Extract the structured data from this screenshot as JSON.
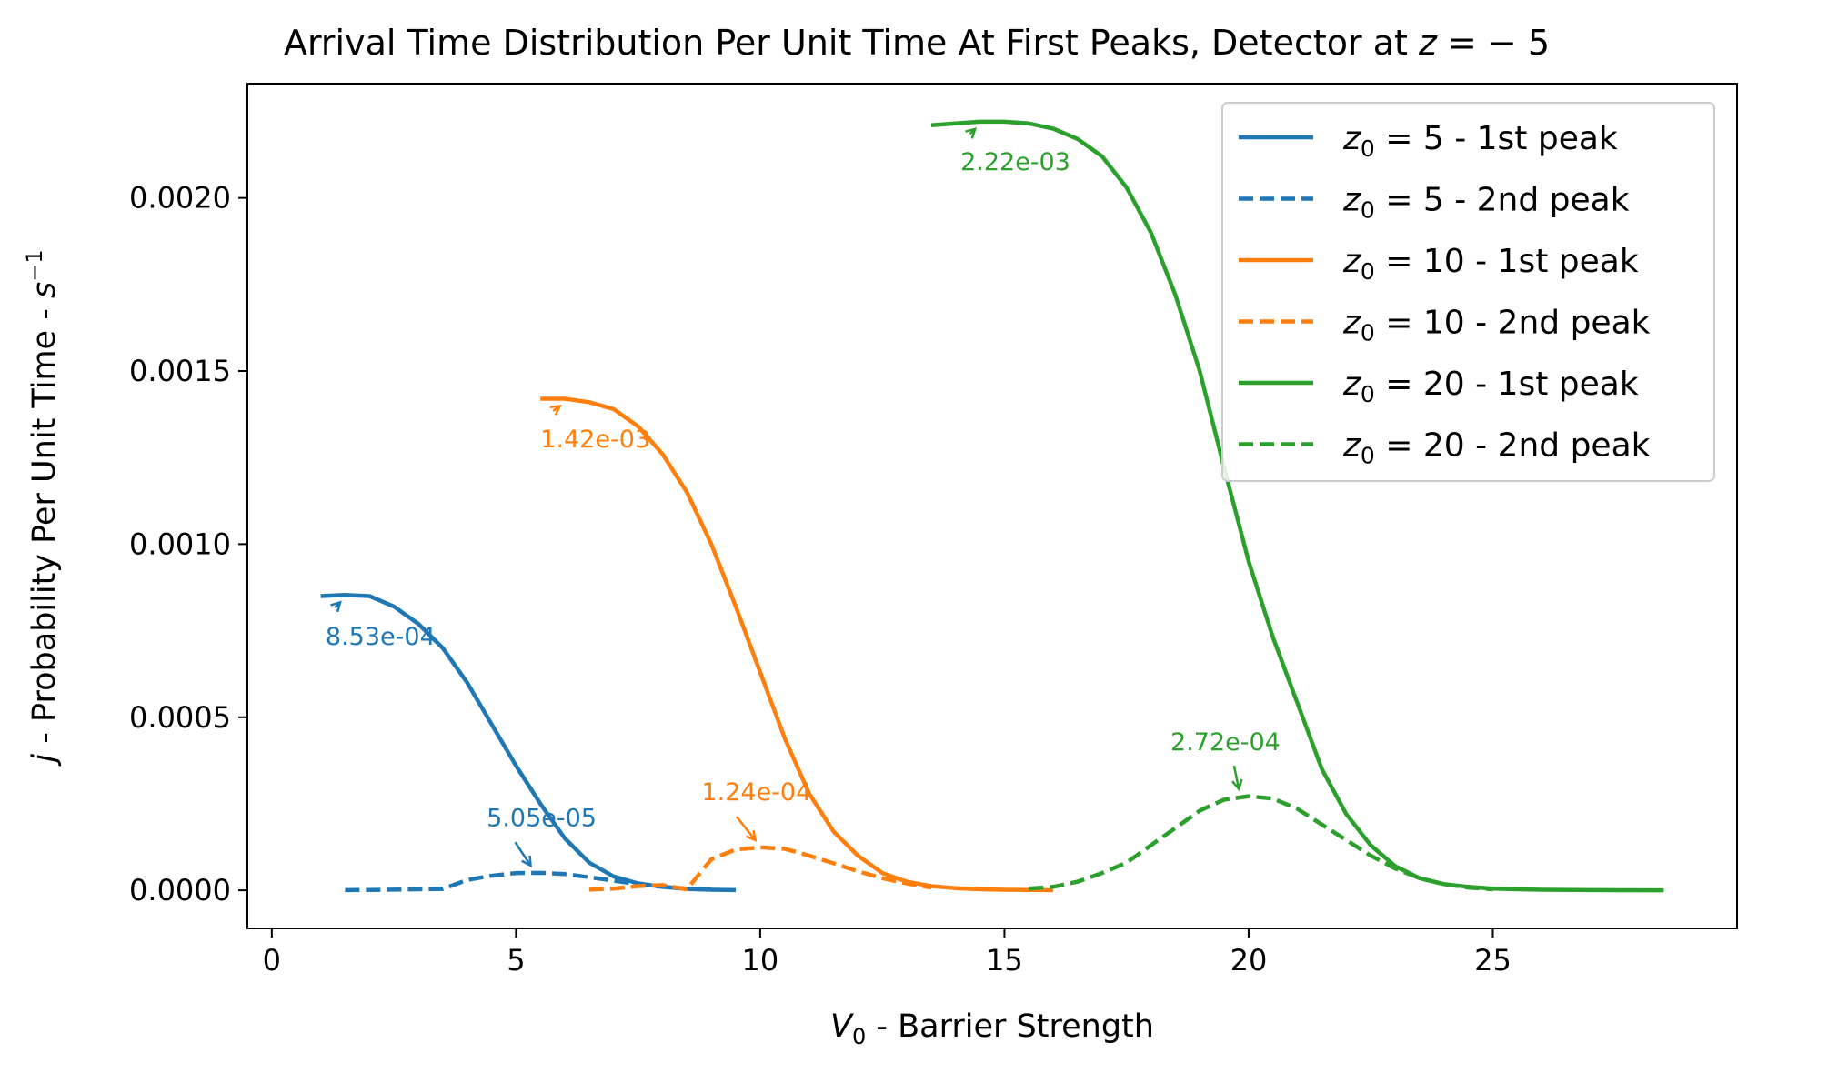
{
  "chart_data": {
    "type": "line",
    "title": "Arrival Time Distribution Per Unit Time At First Peaks, Detector at",
    "title_math": {
      "var": "z",
      "rest": " = − 5"
    },
    "xlabel": {
      "var": "V",
      "sub": "0",
      "rest": " - Barrier Strength"
    },
    "ylabel": {
      "var": "j",
      "rest": " - Probability Per Unit Time - ",
      "unit_var": "s",
      "unit_sup": "−1"
    },
    "xlim": [
      -0.5,
      30
    ],
    "ylim": [
      -0.00011,
      0.00233
    ],
    "xticks": [
      0,
      5,
      10,
      15,
      20,
      25
    ],
    "xtick_labels": [
      "0",
      "5",
      "10",
      "15",
      "20",
      "25"
    ],
    "yticks": [
      0.0,
      0.0005,
      0.001,
      0.0015,
      0.002
    ],
    "ytick_labels": [
      "0.0000",
      "0.0005",
      "0.0010",
      "0.0015",
      "0.0020"
    ],
    "grid": false,
    "legend_position": "top-right",
    "series": [
      {
        "name": "5 - 1st peak",
        "legend": {
          "var": "z",
          "sub": "0",
          "rest": " = 5 - 1st peak"
        },
        "color": "#1f77b4",
        "dash": "solid",
        "x": [
          1.0,
          1.5,
          2.0,
          2.5,
          3.0,
          3.5,
          4.0,
          4.5,
          5.0,
          5.5,
          6.0,
          6.5,
          7.0,
          7.5,
          8.0,
          8.5,
          9.0,
          9.5
        ],
        "y": [
          0.00085,
          0.000853,
          0.00085,
          0.00082,
          0.00077,
          0.0007,
          0.0006,
          0.00048,
          0.00036,
          0.00025,
          0.00015,
          8e-05,
          4e-05,
          2e-05,
          1e-05,
          4e-06,
          1.5e-06,
          5e-07
        ]
      },
      {
        "name": "5 - 2nd peak",
        "legend": {
          "var": "z",
          "sub": "0",
          "rest": " = 5 - 2nd peak"
        },
        "color": "#1f77b4",
        "dash": "dashed",
        "x": [
          1.5,
          2.0,
          2.5,
          3.0,
          3.5,
          4.0,
          4.5,
          5.0,
          5.5,
          6.0,
          6.5,
          7.0,
          7.5,
          8.0,
          8.5,
          9.0
        ],
        "y": [
          5e-07,
          1e-06,
          2e-06,
          3e-06,
          4e-06,
          3e-05,
          4.2e-05,
          5e-05,
          5.05e-05,
          4.7e-05,
          3.8e-05,
          2.8e-05,
          1.8e-05,
          1e-05,
          5e-06,
          2e-06
        ]
      },
      {
        "name": "10 - 1st peak",
        "legend": {
          "var": "z",
          "sub": "0",
          "rest": " = 10 - 1st peak"
        },
        "color": "#ff7f0e",
        "dash": "solid",
        "x": [
          5.5,
          6.0,
          6.5,
          7.0,
          7.5,
          8.0,
          8.5,
          9.0,
          9.5,
          10.0,
          10.5,
          11.0,
          11.5,
          12.0,
          12.5,
          13.0,
          13.5,
          14.0,
          14.5,
          15.0,
          15.5,
          16.0
        ],
        "y": [
          0.00142,
          0.00142,
          0.00141,
          0.00139,
          0.00134,
          0.00126,
          0.00115,
          0.001,
          0.00082,
          0.00063,
          0.00044,
          0.00028,
          0.00017,
          0.0001,
          5e-05,
          2.5e-05,
          1.2e-05,
          6e-06,
          3e-06,
          1.5e-06,
          8e-07,
          4e-07
        ]
      },
      {
        "name": "10 - 2nd peak",
        "legend": {
          "var": "z",
          "sub": "0",
          "rest": " = 10 - 2nd peak"
        },
        "color": "#ff7f0e",
        "dash": "dashed",
        "x": [
          6.5,
          7.0,
          7.5,
          8.0,
          8.5,
          9.0,
          9.5,
          10.0,
          10.5,
          11.0,
          11.5,
          12.0,
          12.5,
          13.0,
          13.5
        ],
        "y": [
          2e-06,
          5e-06,
          1.2e-05,
          1.5e-05,
          3e-06,
          9e-05,
          0.000118,
          0.000124,
          0.00012,
          0.0001,
          7.8e-05,
          5.5e-05,
          3.5e-05,
          2e-05,
          8e-06
        ]
      },
      {
        "name": "20 - 1st peak",
        "legend": {
          "var": "z",
          "sub": "0",
          "rest": " = 20 - 1st peak"
        },
        "color": "#2ca02c",
        "dash": "solid",
        "x": [
          13.5,
          14.0,
          14.5,
          15.0,
          15.5,
          16.0,
          16.5,
          17.0,
          17.5,
          18.0,
          18.5,
          19.0,
          19.5,
          20.0,
          20.5,
          21.0,
          21.5,
          22.0,
          22.5,
          23.0,
          23.5,
          24.0,
          24.5,
          25.0,
          25.5,
          26.0,
          27.0,
          28.5
        ],
        "y": [
          0.00221,
          0.002215,
          0.00222,
          0.00222,
          0.002215,
          0.0022,
          0.00217,
          0.00212,
          0.00203,
          0.0019,
          0.00172,
          0.0015,
          0.00122,
          0.00095,
          0.00073,
          0.00054,
          0.00035,
          0.00022,
          0.00013,
          7e-05,
          3.5e-05,
          1.8e-05,
          1e-05,
          5e-06,
          3e-06,
          1.5e-06,
          5e-07,
          1e-07
        ]
      },
      {
        "name": "20 - 2nd peak",
        "legend": {
          "var": "z",
          "sub": "0",
          "rest": " = 20 - 2nd peak"
        },
        "color": "#2ca02c",
        "dash": "dashed",
        "x": [
          15.5,
          16.0,
          16.5,
          17.0,
          17.5,
          18.0,
          18.5,
          19.0,
          19.5,
          20.0,
          20.5,
          21.0,
          21.5,
          22.0,
          22.5,
          23.0,
          23.5,
          24.0,
          24.5,
          25.0
        ],
        "y": [
          5e-06,
          1e-05,
          2.5e-05,
          5e-05,
          8e-05,
          0.00013,
          0.00018,
          0.00023,
          0.000262,
          0.000272,
          0.000265,
          0.000235,
          0.00019,
          0.000145,
          0.0001,
          6.3e-05,
          3.5e-05,
          1.8e-05,
          8e-06,
          3e-06
        ]
      }
    ],
    "annotations": [
      {
        "text": "8.53e-04",
        "color": "#1f77b4",
        "point": [
          1.4,
          0.000853
        ],
        "text_at": [
          1.1,
          0.00071
        ]
      },
      {
        "text": "5.05e-05",
        "color": "#1f77b4",
        "point": [
          5.3,
          5.05e-05
        ],
        "text_at": [
          4.4,
          0.000185
        ]
      },
      {
        "text": "1.42e-03",
        "color": "#ff7f0e",
        "point": [
          5.9,
          0.00142
        ],
        "text_at": [
          5.5,
          0.00128
        ]
      },
      {
        "text": "1.24e-04",
        "color": "#ff7f0e",
        "point": [
          9.9,
          0.000124
        ],
        "text_at": [
          8.8,
          0.00026
        ]
      },
      {
        "text": "2.22e-03",
        "color": "#2ca02c",
        "point": [
          14.4,
          0.00222
        ],
        "text_at": [
          14.1,
          0.00208
        ]
      },
      {
        "text": "2.72e-04",
        "color": "#2ca02c",
        "point": [
          19.8,
          0.000272
        ],
        "text_at": [
          18.4,
          0.000405
        ]
      }
    ]
  }
}
